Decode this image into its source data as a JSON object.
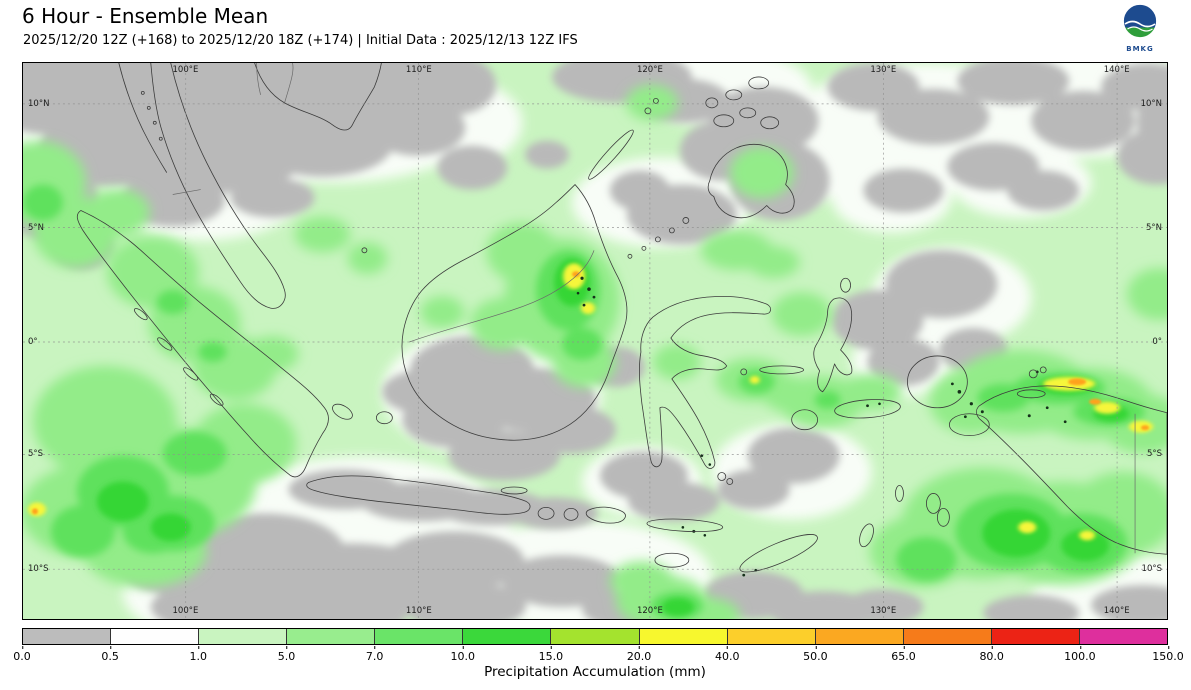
{
  "header": {
    "title": "6 Hour - Ensemble Mean",
    "subtitle": "2025/12/20 12Z (+168) to 2025/12/20 18Z (+174) | Initial Data : 2025/12/13 12Z IFS",
    "logo_text": "BMKG"
  },
  "map": {
    "lon_ticks": [
      "100°E",
      "110°E",
      "120°E",
      "130°E",
      "140°E"
    ],
    "lat_ticks": [
      "10°N",
      "5°N",
      "0°",
      "5°S",
      "10°S"
    ]
  },
  "colorbar": {
    "label": "Precipitation Accumulation (mm)",
    "tick_labels": [
      "0.0",
      "0.5",
      "1.0",
      "5.0",
      "7.0",
      "10.0",
      "15.0",
      "20.0",
      "40.0",
      "50.0",
      "65.0",
      "80.0",
      "100.0",
      "150.0"
    ],
    "segment_colors": [
      "#bcbcbc",
      "#fefefe",
      "#c9f4c0",
      "#98ed8e",
      "#6ae468",
      "#3bd83b",
      "#a4e32e",
      "#f7f72e",
      "#fccf2b",
      "#fba821",
      "#f67b1a",
      "#ec2315",
      "#de2f9d"
    ]
  },
  "chart_data": {
    "type": "heatmap",
    "title": "6 Hour - Ensemble Mean",
    "subtitle": "2025/12/20 12Z (+168) to 2025/12/20 18Z (+174) | Initial Data : 2025/12/13 12Z IFS",
    "variable": "Precipitation Accumulation (mm)",
    "region": "Indonesia / Maritime Continent",
    "lon_tick_labels": [
      "100°E",
      "110°E",
      "120°E",
      "130°E",
      "140°E"
    ],
    "lat_tick_labels": [
      "10°N",
      "5°N",
      "0°",
      "5°S",
      "10°S"
    ],
    "scale_breaks_mm": [
      0.0,
      0.5,
      1.0,
      5.0,
      7.0,
      10.0,
      15.0,
      20.0,
      40.0,
      50.0,
      65.0,
      80.0,
      100.0,
      150.0
    ],
    "scale_colors": [
      "#bcbcbc",
      "#fefefe",
      "#c9f4c0",
      "#98ed8e",
      "#6ae468",
      "#3bd83b",
      "#a4e32e",
      "#f7f72e",
      "#fccf2b",
      "#fba821",
      "#f67b1a",
      "#ec2315",
      "#de2f9d"
    ],
    "legend_position": "bottom"
  }
}
